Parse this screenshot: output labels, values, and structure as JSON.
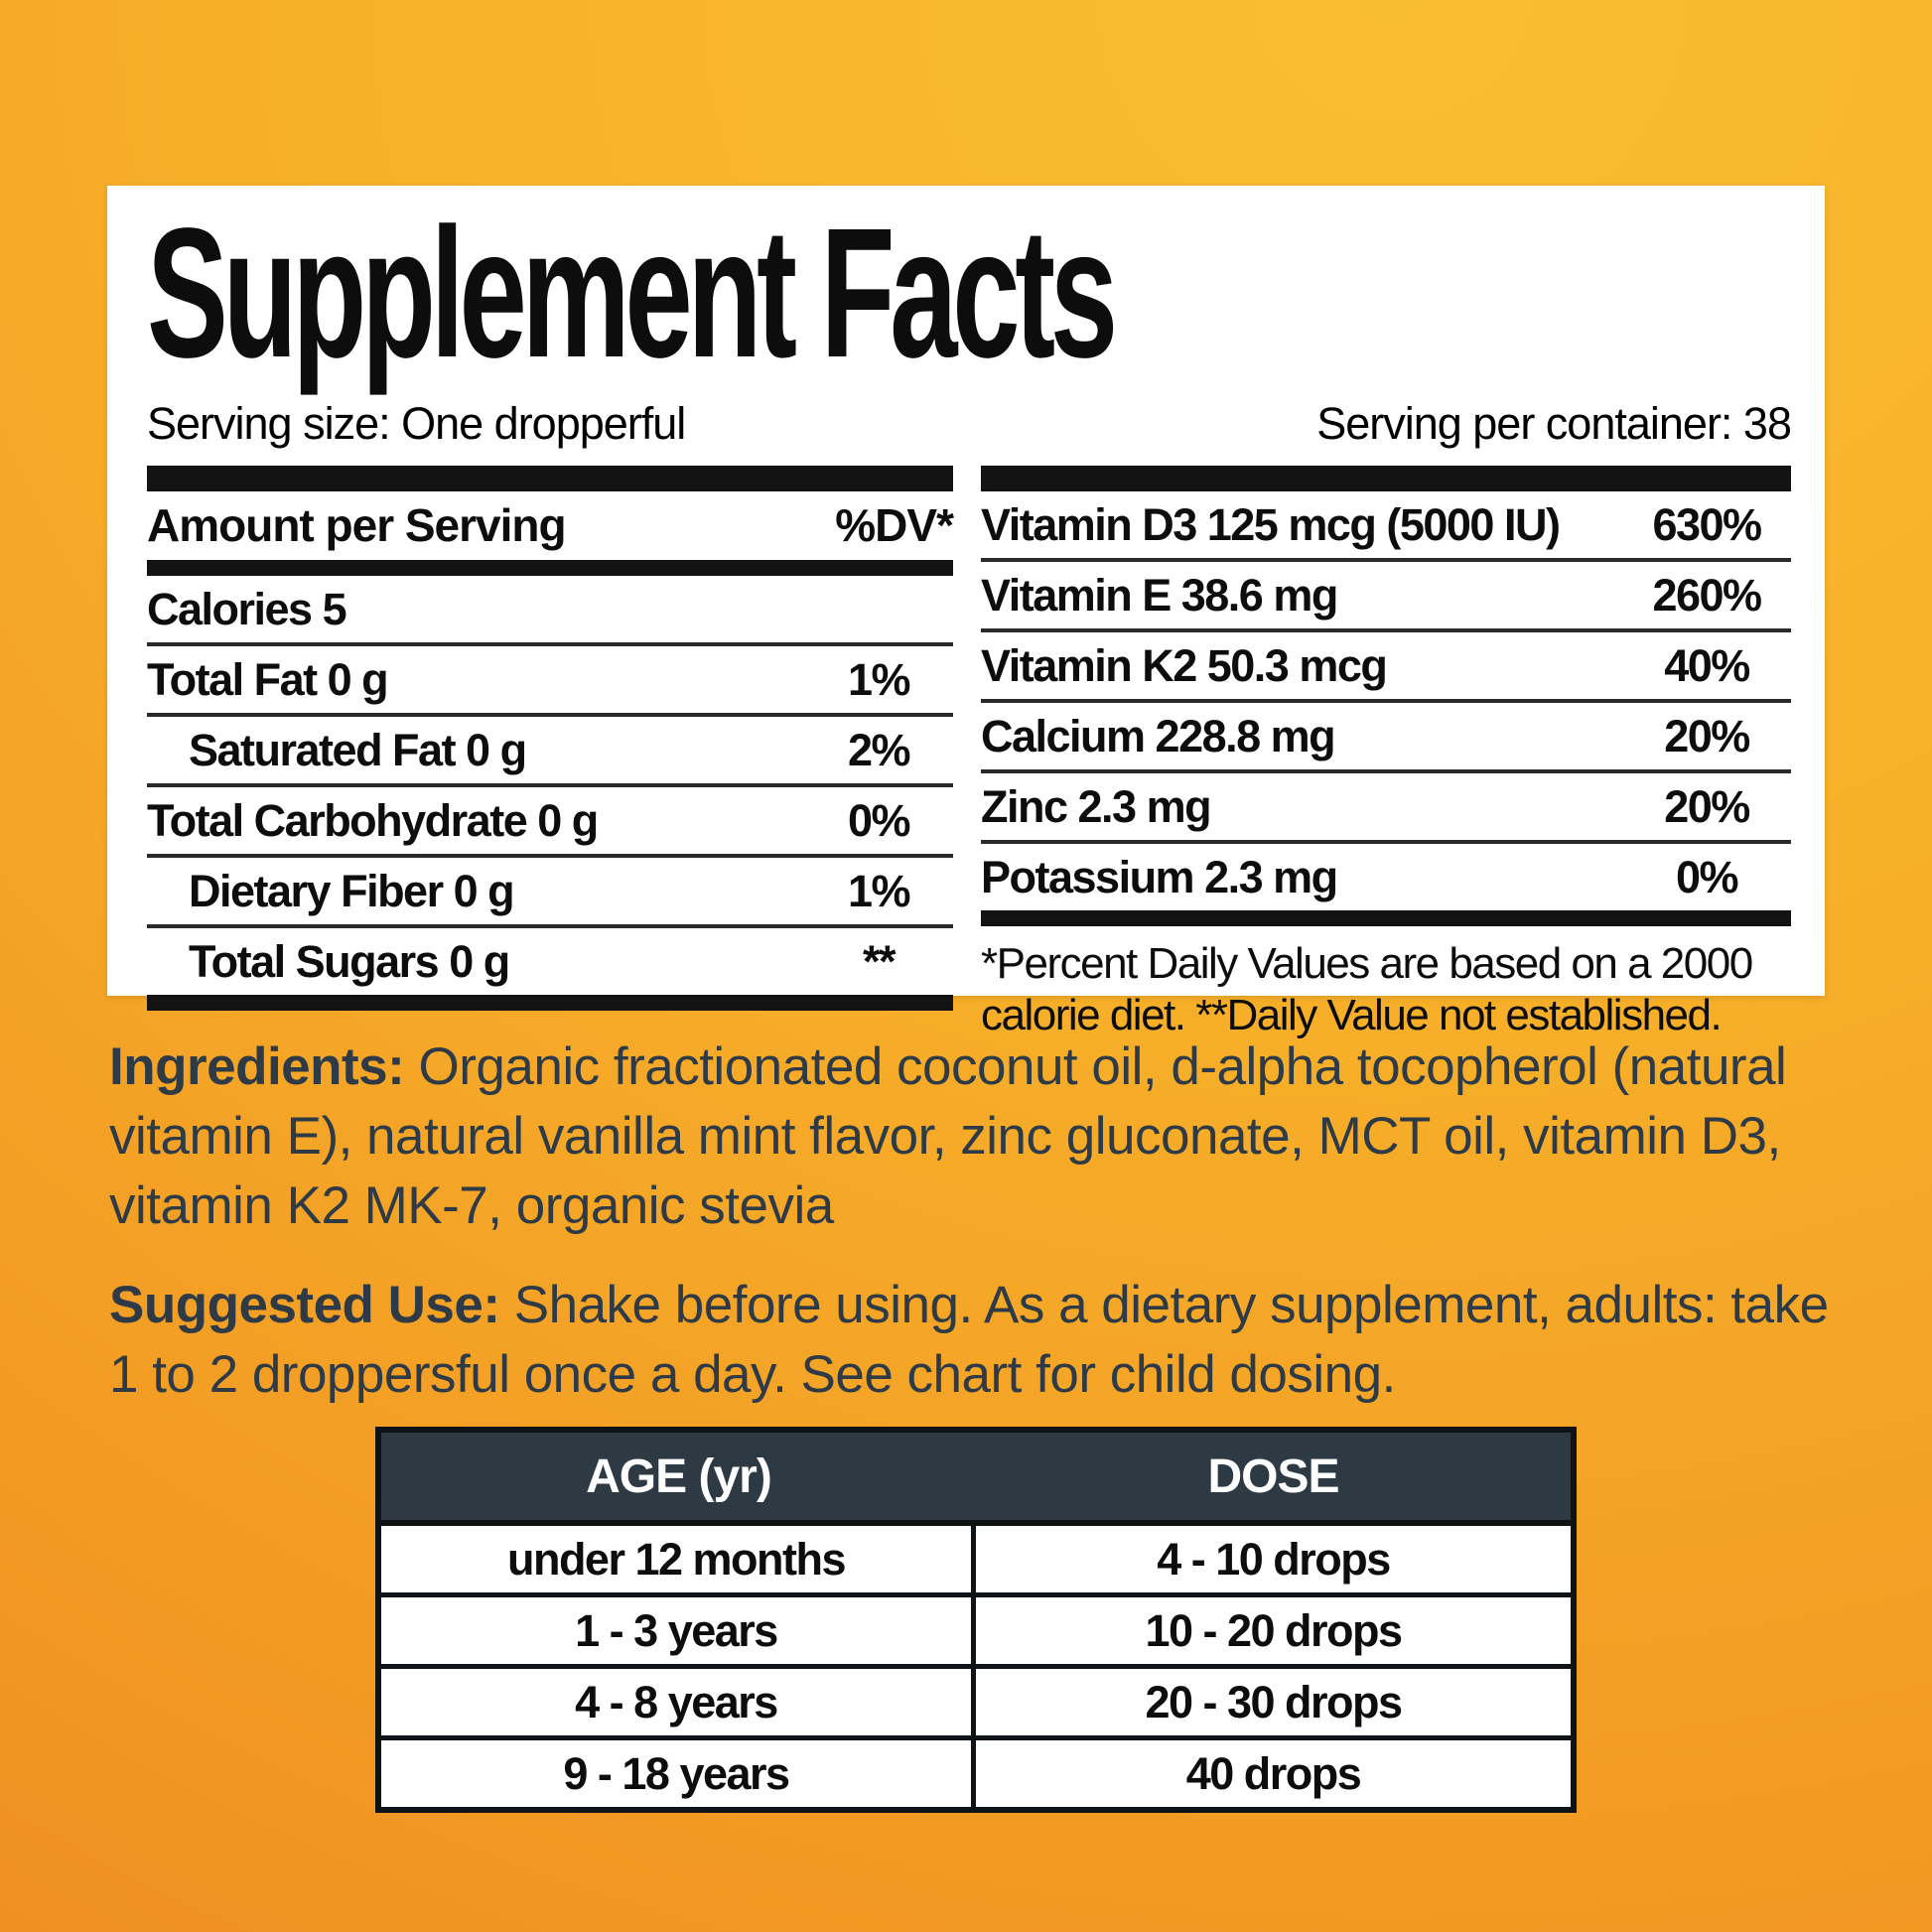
{
  "panel": {
    "title": "Supplement Facts",
    "serving_size": "Serving size: One dropperful",
    "servings_per_container": "Serving per container: 38",
    "left_table": {
      "header": "Amount per Serving",
      "dv_header": "%DV*",
      "rows": [
        {
          "label": "Calories 5",
          "dv": "",
          "indent": false
        },
        {
          "label": "Total Fat 0 g",
          "dv": "1%",
          "indent": false
        },
        {
          "label": "Saturated Fat 0 g",
          "dv": "2%",
          "indent": true
        },
        {
          "label": "Total Carbohydrate 0 g",
          "dv": "0%",
          "indent": false
        },
        {
          "label": "Dietary Fiber 0 g",
          "dv": "1%",
          "indent": true
        },
        {
          "label": "Total Sugars 0 g",
          "dv": "**",
          "indent": true
        }
      ]
    },
    "right_table": {
      "rows": [
        {
          "label": "Vitamin D3 125 mcg (5000 IU)",
          "dv": "630%"
        },
        {
          "label": "Vitamin E 38.6 mg",
          "dv": "260%"
        },
        {
          "label": "Vitamin K2 50.3 mcg",
          "dv": "40%"
        },
        {
          "label": "Calcium 228.8 mg",
          "dv": "20%"
        },
        {
          "label": "Zinc 2.3 mg",
          "dv": "20%"
        },
        {
          "label": "Potassium 2.3 mg",
          "dv": "0%"
        }
      ],
      "footnote": "*Percent Daily Values are based on a 2000 calorie diet. **Daily Value not established."
    }
  },
  "ingredients": {
    "label": "Ingredients:",
    "text": " Organic fractionated coconut oil, d-alpha tocopherol (natural vitamin E), natural vanilla mint flavor, zinc gluconate, MCT oil, vitamin D3, vitamin K2 MK-7, organic stevia"
  },
  "suggested_use": {
    "label": "Suggested Use:",
    "text": " Shake before using. As a dietary supplement, adults: take 1 to 2 droppersful once a day. See chart for child dosing."
  },
  "dose_table": {
    "headers": [
      "AGE (yr)",
      "DOSE"
    ],
    "rows": [
      [
        "under 12 months",
        "4 - 10 drops"
      ],
      [
        "1 - 3 years",
        "10 - 20 drops"
      ],
      [
        "4 - 8 years",
        "20 - 30 drops"
      ],
      [
        "9 - 18 years",
        "40 drops"
      ]
    ]
  },
  "colors": {
    "background_top": "#f9bd33",
    "background_bottom": "#ef8a1f",
    "panel_background": "#ffffff",
    "rule_black": "#131313",
    "paragraph_text": "#2e3b46",
    "dose_header_background": "#2d3943",
    "dose_header_text": "#ffffff"
  }
}
